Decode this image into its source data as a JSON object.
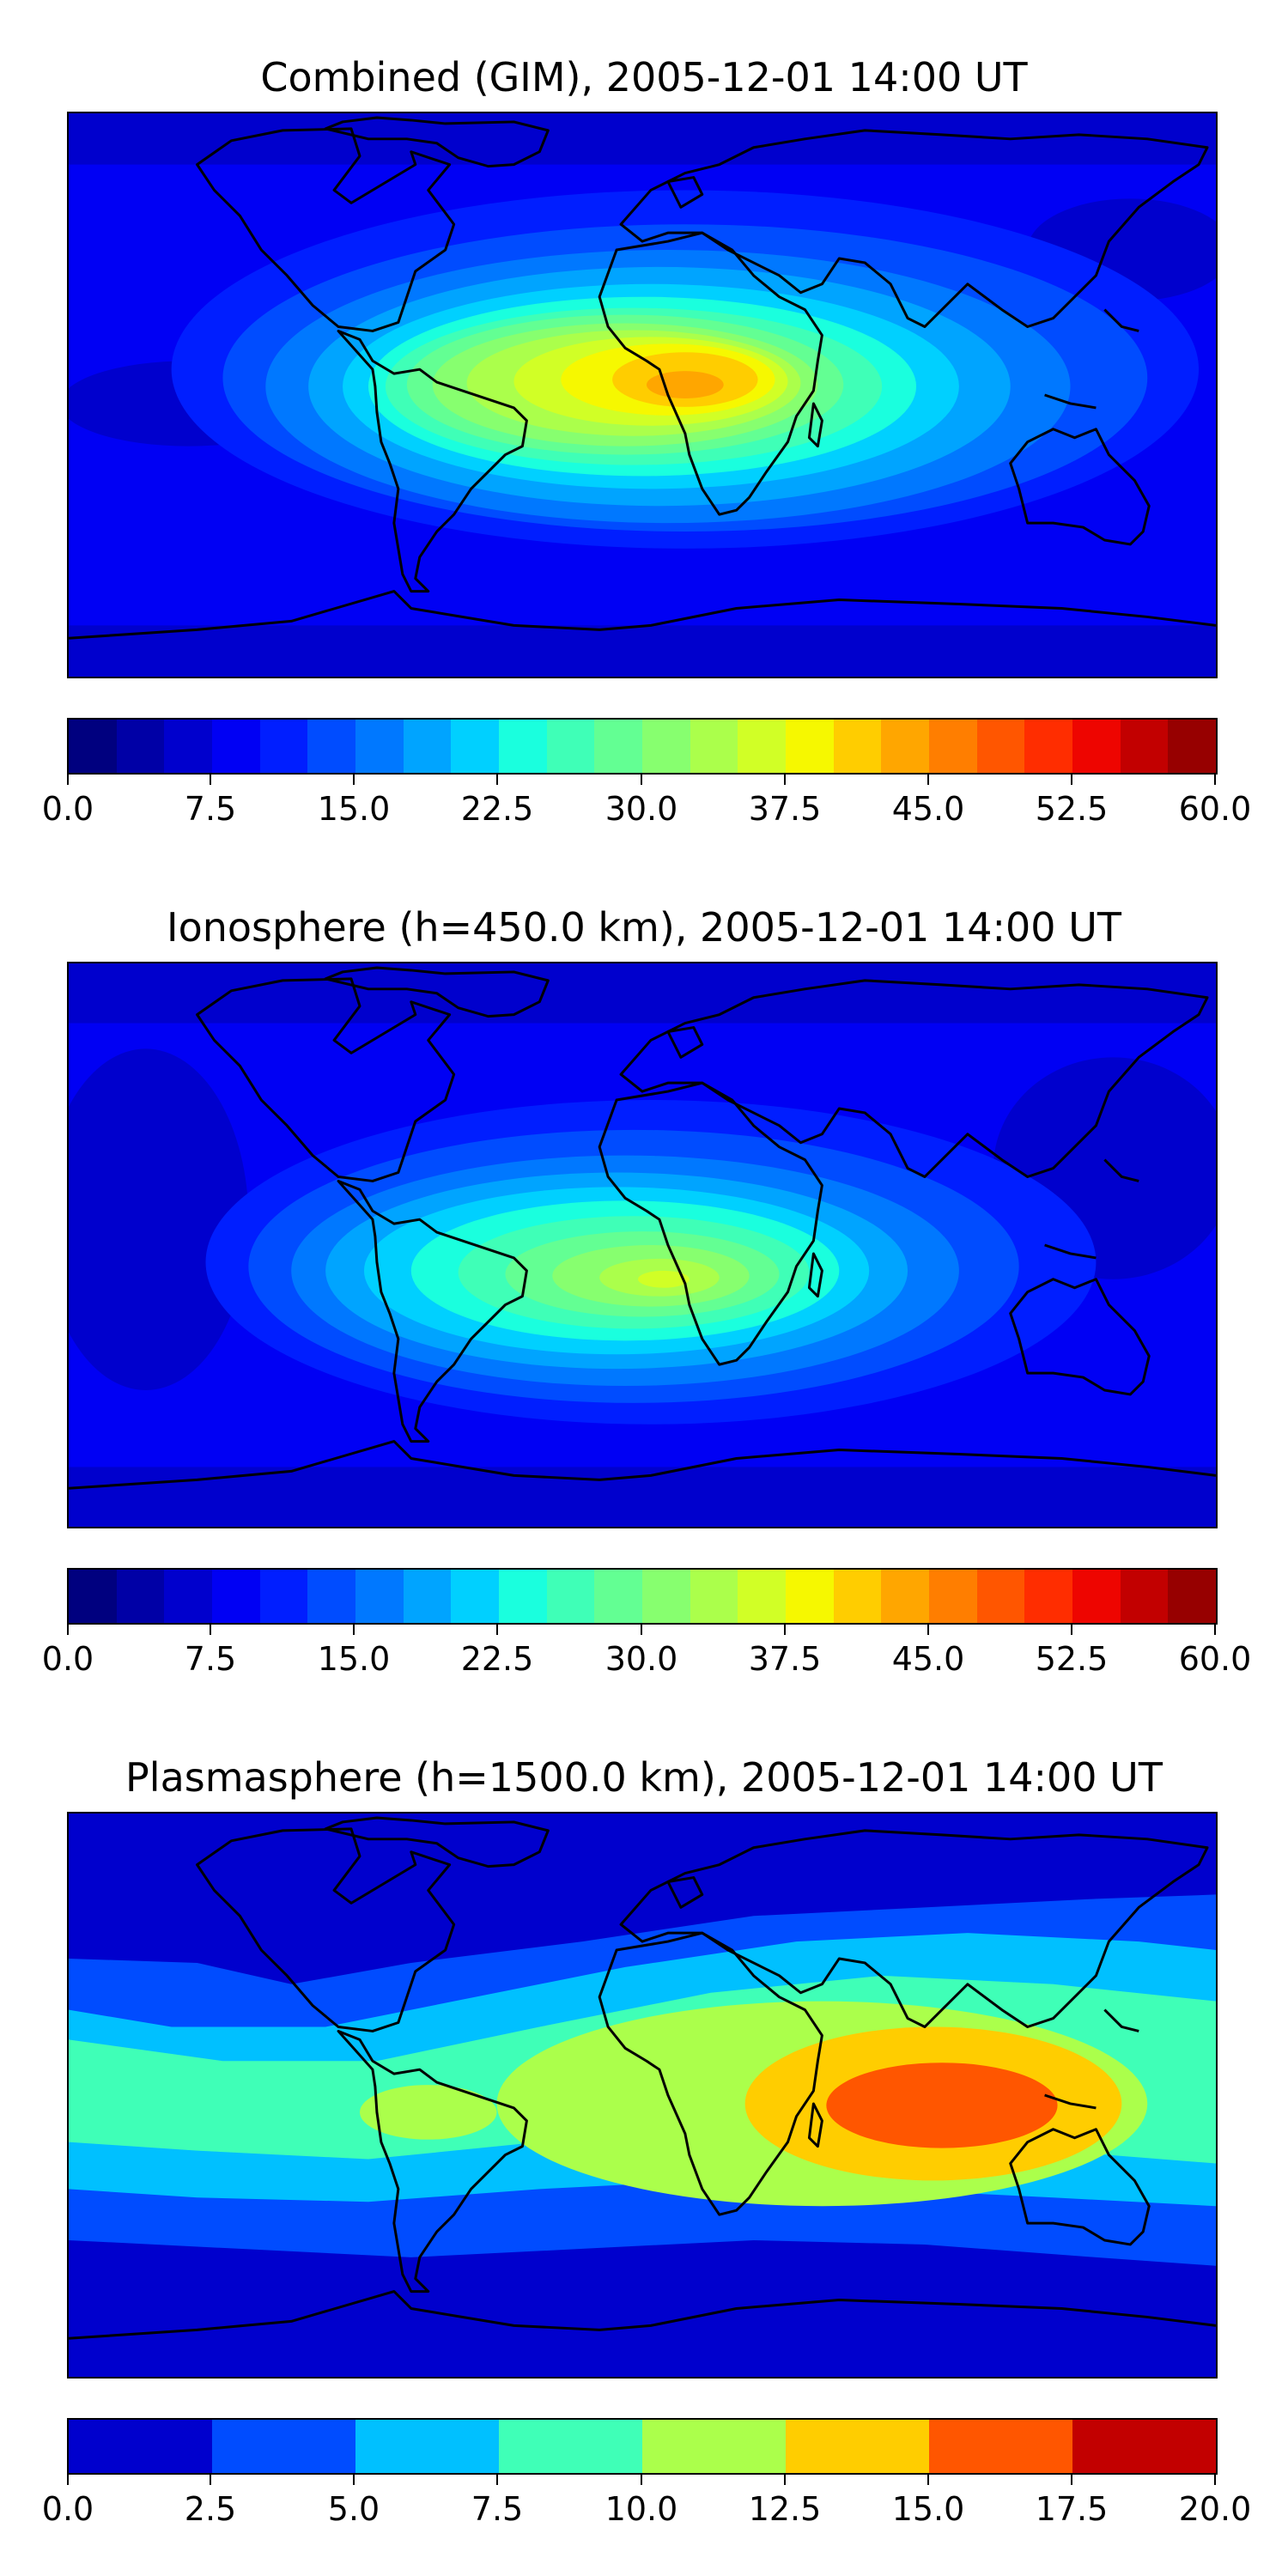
{
  "panels": [
    {
      "title": "Combined (GIM), 2005-12-01 14:00 UT",
      "tick_labels": [
        "0.0",
        "7.5",
        "15.0",
        "22.5",
        "30.0",
        "37.5",
        "45.0",
        "52.5",
        "60.0"
      ],
      "colorbar": {
        "min": 0.0,
        "max": 60.0,
        "levels": 24,
        "colors": [
          "#00007f",
          "#0000a6",
          "#0000cd",
          "#0000f4",
          "#001eff",
          "#004cff",
          "#0078ff",
          "#00a4ff",
          "#00d0ff",
          "#1affde",
          "#3fffb7",
          "#63ff93",
          "#87ff6f",
          "#abff4b",
          "#d1ff26",
          "#f6f800",
          "#ffcd00",
          "#ffa600",
          "#ff7e00",
          "#ff5600",
          "#ff2d00",
          "#ee0500",
          "#c20000",
          "#970000"
        ]
      }
    },
    {
      "title": "Ionosphere  (h=450.0 km), 2005-12-01 14:00 UT",
      "tick_labels": [
        "0.0",
        "7.5",
        "15.0",
        "22.5",
        "30.0",
        "37.5",
        "45.0",
        "52.5",
        "60.0"
      ],
      "colorbar": {
        "min": 0.0,
        "max": 60.0,
        "levels": 24,
        "colors": [
          "#00007f",
          "#0000a6",
          "#0000cd",
          "#0000f4",
          "#001eff",
          "#004cff",
          "#0078ff",
          "#00a4ff",
          "#00d0ff",
          "#1affde",
          "#3fffb7",
          "#63ff93",
          "#87ff6f",
          "#abff4b",
          "#d1ff26",
          "#f6f800",
          "#ffcd00",
          "#ffa600",
          "#ff7e00",
          "#ff5600",
          "#ff2d00",
          "#ee0500",
          "#c20000",
          "#970000"
        ]
      }
    },
    {
      "title": "Plasmasphere (h=1500.0 km), 2005-12-01 14:00 UT",
      "tick_labels": [
        "0.0",
        "2.5",
        "5.0",
        "7.5",
        "10.0",
        "12.5",
        "15.0",
        "17.5",
        "20.0"
      ],
      "colorbar": {
        "min": 0.0,
        "max": 20.0,
        "levels": 8,
        "colors": [
          "#0000cd",
          "#004cff",
          "#00c0ff",
          "#3fffb7",
          "#abff4b",
          "#ffcd00",
          "#ff5600",
          "#c20000"
        ]
      }
    }
  ]
}
